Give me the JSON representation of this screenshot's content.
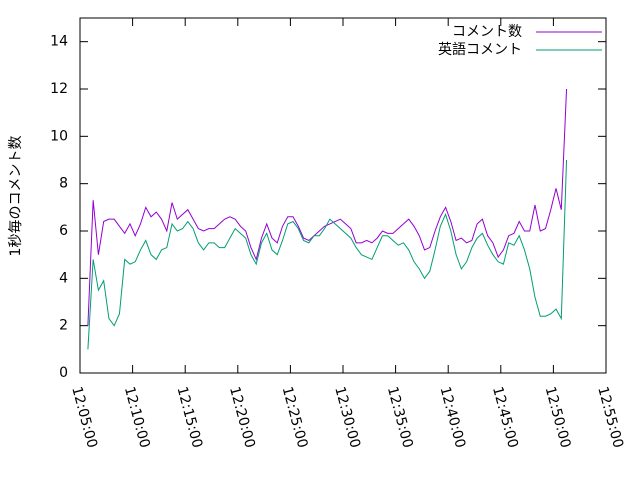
{
  "chart_data": {
    "type": "line",
    "ylabel": "1秒毎のコメント数",
    "x": [
      "12:05:45",
      "12:06:15",
      "12:06:45",
      "12:07:15",
      "12:07:45",
      "12:08:15",
      "12:08:45",
      "12:09:15",
      "12:09:45",
      "12:10:15",
      "12:10:45",
      "12:11:15",
      "12:11:45",
      "12:12:15",
      "12:12:45",
      "12:13:15",
      "12:13:45",
      "12:14:15",
      "12:14:45",
      "12:15:15",
      "12:15:45",
      "12:16:15",
      "12:16:45",
      "12:17:15",
      "12:17:45",
      "12:18:15",
      "12:18:45",
      "12:19:15",
      "12:19:45",
      "12:20:15",
      "12:20:45",
      "12:21:15",
      "12:21:45",
      "12:22:15",
      "12:22:45",
      "12:23:15",
      "12:23:45",
      "12:24:15",
      "12:24:45",
      "12:25:15",
      "12:25:45",
      "12:26:15",
      "12:26:45",
      "12:27:15",
      "12:27:45",
      "12:28:15",
      "12:28:45",
      "12:29:15",
      "12:29:45",
      "12:30:15",
      "12:30:45",
      "12:31:15",
      "12:31:45",
      "12:32:15",
      "12:32:45",
      "12:33:15",
      "12:33:45",
      "12:34:15",
      "12:34:45",
      "12:35:15",
      "12:35:45",
      "12:36:15",
      "12:36:45",
      "12:37:15",
      "12:37:45",
      "12:38:15",
      "12:38:45",
      "12:39:15",
      "12:39:45",
      "12:40:15",
      "12:40:45",
      "12:41:15",
      "12:41:45",
      "12:42:15",
      "12:42:45",
      "12:43:15",
      "12:43:45",
      "12:44:15",
      "12:44:45",
      "12:45:15",
      "12:45:45",
      "12:46:15",
      "12:46:45",
      "12:47:15",
      "12:47:45",
      "12:48:15",
      "12:48:45",
      "12:49:15",
      "12:49:45",
      "12:50:15",
      "12:50:45",
      "12:51:15"
    ],
    "series": [
      {
        "name": "コメント数",
        "color": "#9400d3",
        "values": [
          2.0,
          7.3,
          5.0,
          6.4,
          6.5,
          6.5,
          6.2,
          5.9,
          6.3,
          5.8,
          6.3,
          7.0,
          6.6,
          6.8,
          6.5,
          6.0,
          7.2,
          6.5,
          6.7,
          6.9,
          6.5,
          6.1,
          6.0,
          6.1,
          6.1,
          6.3,
          6.5,
          6.6,
          6.5,
          6.2,
          6.0,
          5.3,
          4.8,
          5.7,
          6.3,
          5.7,
          5.5,
          6.2,
          6.6,
          6.6,
          6.2,
          5.7,
          5.6,
          5.8,
          6.0,
          6.2,
          6.3,
          6.4,
          6.5,
          6.3,
          6.1,
          5.5,
          5.5,
          5.6,
          5.5,
          5.7,
          6.0,
          5.9,
          5.9,
          6.1,
          6.3,
          6.5,
          6.2,
          5.8,
          5.2,
          5.3,
          6.0,
          6.6,
          7.0,
          6.4,
          5.6,
          5.7,
          5.5,
          5.6,
          6.3,
          6.5,
          5.8,
          5.5,
          4.9,
          5.2,
          5.8,
          5.9,
          6.4,
          6.0,
          6.0,
          7.1,
          6.0,
          6.1,
          6.9,
          7.8,
          6.9,
          12.0
        ]
      },
      {
        "name": "英語コメント",
        "color": "#009e73",
        "values": [
          1.0,
          4.8,
          3.5,
          3.9,
          2.3,
          2.0,
          2.5,
          4.8,
          4.6,
          4.7,
          5.2,
          5.6,
          5.0,
          4.8,
          5.2,
          5.3,
          6.3,
          6.0,
          6.1,
          6.4,
          6.1,
          5.5,
          5.2,
          5.5,
          5.5,
          5.3,
          5.3,
          5.7,
          6.1,
          5.9,
          5.7,
          5.0,
          4.6,
          5.5,
          5.9,
          5.2,
          5.0,
          5.6,
          6.3,
          6.4,
          6.1,
          5.6,
          5.5,
          5.8,
          5.8,
          6.1,
          6.5,
          6.3,
          6.1,
          5.9,
          5.7,
          5.3,
          5.0,
          4.9,
          4.8,
          5.3,
          5.8,
          5.8,
          5.6,
          5.4,
          5.5,
          5.2,
          4.7,
          4.4,
          4.0,
          4.3,
          5.2,
          6.2,
          6.7,
          6.0,
          5.0,
          4.4,
          4.7,
          5.3,
          5.7,
          5.9,
          5.4,
          5.0,
          4.7,
          4.6,
          5.5,
          5.4,
          5.8,
          5.2,
          4.4,
          3.2,
          2.4,
          2.4,
          2.5,
          2.7,
          2.3,
          9.0
        ]
      }
    ],
    "xlim": [
      "12:05:00",
      "12:55:00"
    ],
    "xticks": [
      "12:05:00",
      "12:10:00",
      "12:15:00",
      "12:20:00",
      "12:25:00",
      "12:30:00",
      "12:35:00",
      "12:40:00",
      "12:45:00",
      "12:50:00",
      "12:55:00"
    ],
    "ylim": [
      0,
      15
    ],
    "yticks": [
      0,
      2,
      4,
      6,
      8,
      10,
      12,
      14
    ],
    "legend": "top-right"
  }
}
